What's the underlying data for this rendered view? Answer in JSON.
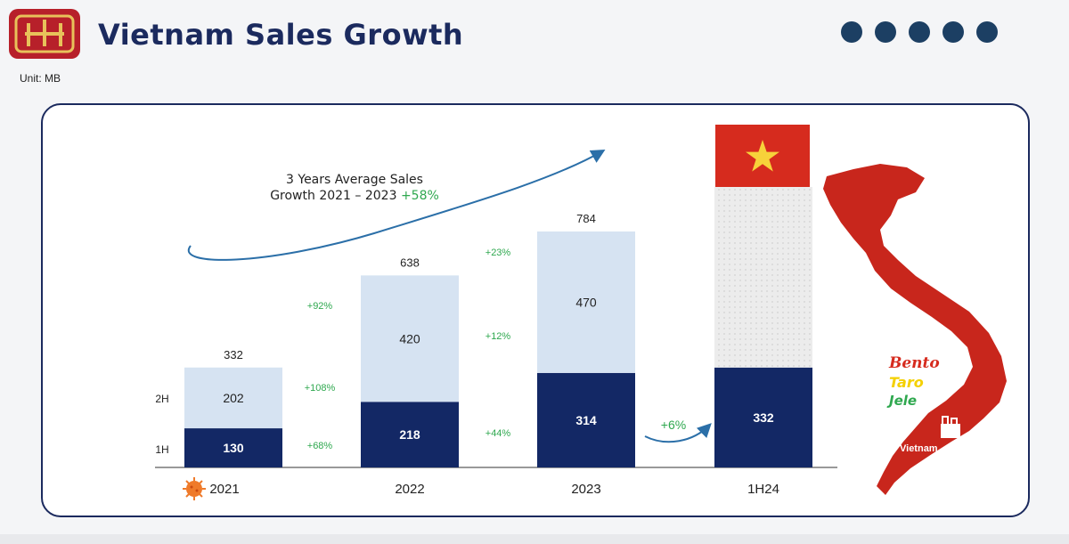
{
  "header": {
    "title": "Vietnam Sales Growth",
    "unit": "Unit: MB",
    "page_dots": 5
  },
  "growth_note": {
    "line1": "3 Years Average Sales",
    "line2": "Growth 2021 – 2023",
    "highlight": "+58%"
  },
  "row_labels": {
    "h2": "2H",
    "h1": "1H"
  },
  "annotations": {
    "total_2021_2022": "+92%",
    "h2_2021_2022": "+108%",
    "h1_2021_2022": "+68%",
    "total_2022_2023": "+23%",
    "h2_2022_2023": "+12%",
    "h1_2022_2023": "+44%",
    "h1_2023_1h24": "+6%"
  },
  "map": {
    "brands": [
      "Bento",
      "Taro",
      "Jele"
    ],
    "label": "Vietnam"
  },
  "colors": {
    "title": "#1b2a5e",
    "dark_bar": "#132865",
    "light_bar": "#d6e3f2",
    "growth_green": "#2fa84f",
    "vietnam_red": "#d62b1e",
    "star_yellow": "#f7d23a"
  },
  "chart_data": {
    "type": "bar",
    "stacked": true,
    "categories": [
      "2021",
      "2022",
      "2023",
      "1H24"
    ],
    "series": [
      {
        "name": "1H",
        "values": [
          130,
          218,
          314,
          332
        ]
      },
      {
        "name": "2H",
        "values": [
          202,
          420,
          470,
          null
        ]
      }
    ],
    "totals": [
      "332",
      "638",
      "784",
      ""
    ],
    "title": "Vietnam Sales Growth",
    "ylabel": "",
    "grid": false
  }
}
